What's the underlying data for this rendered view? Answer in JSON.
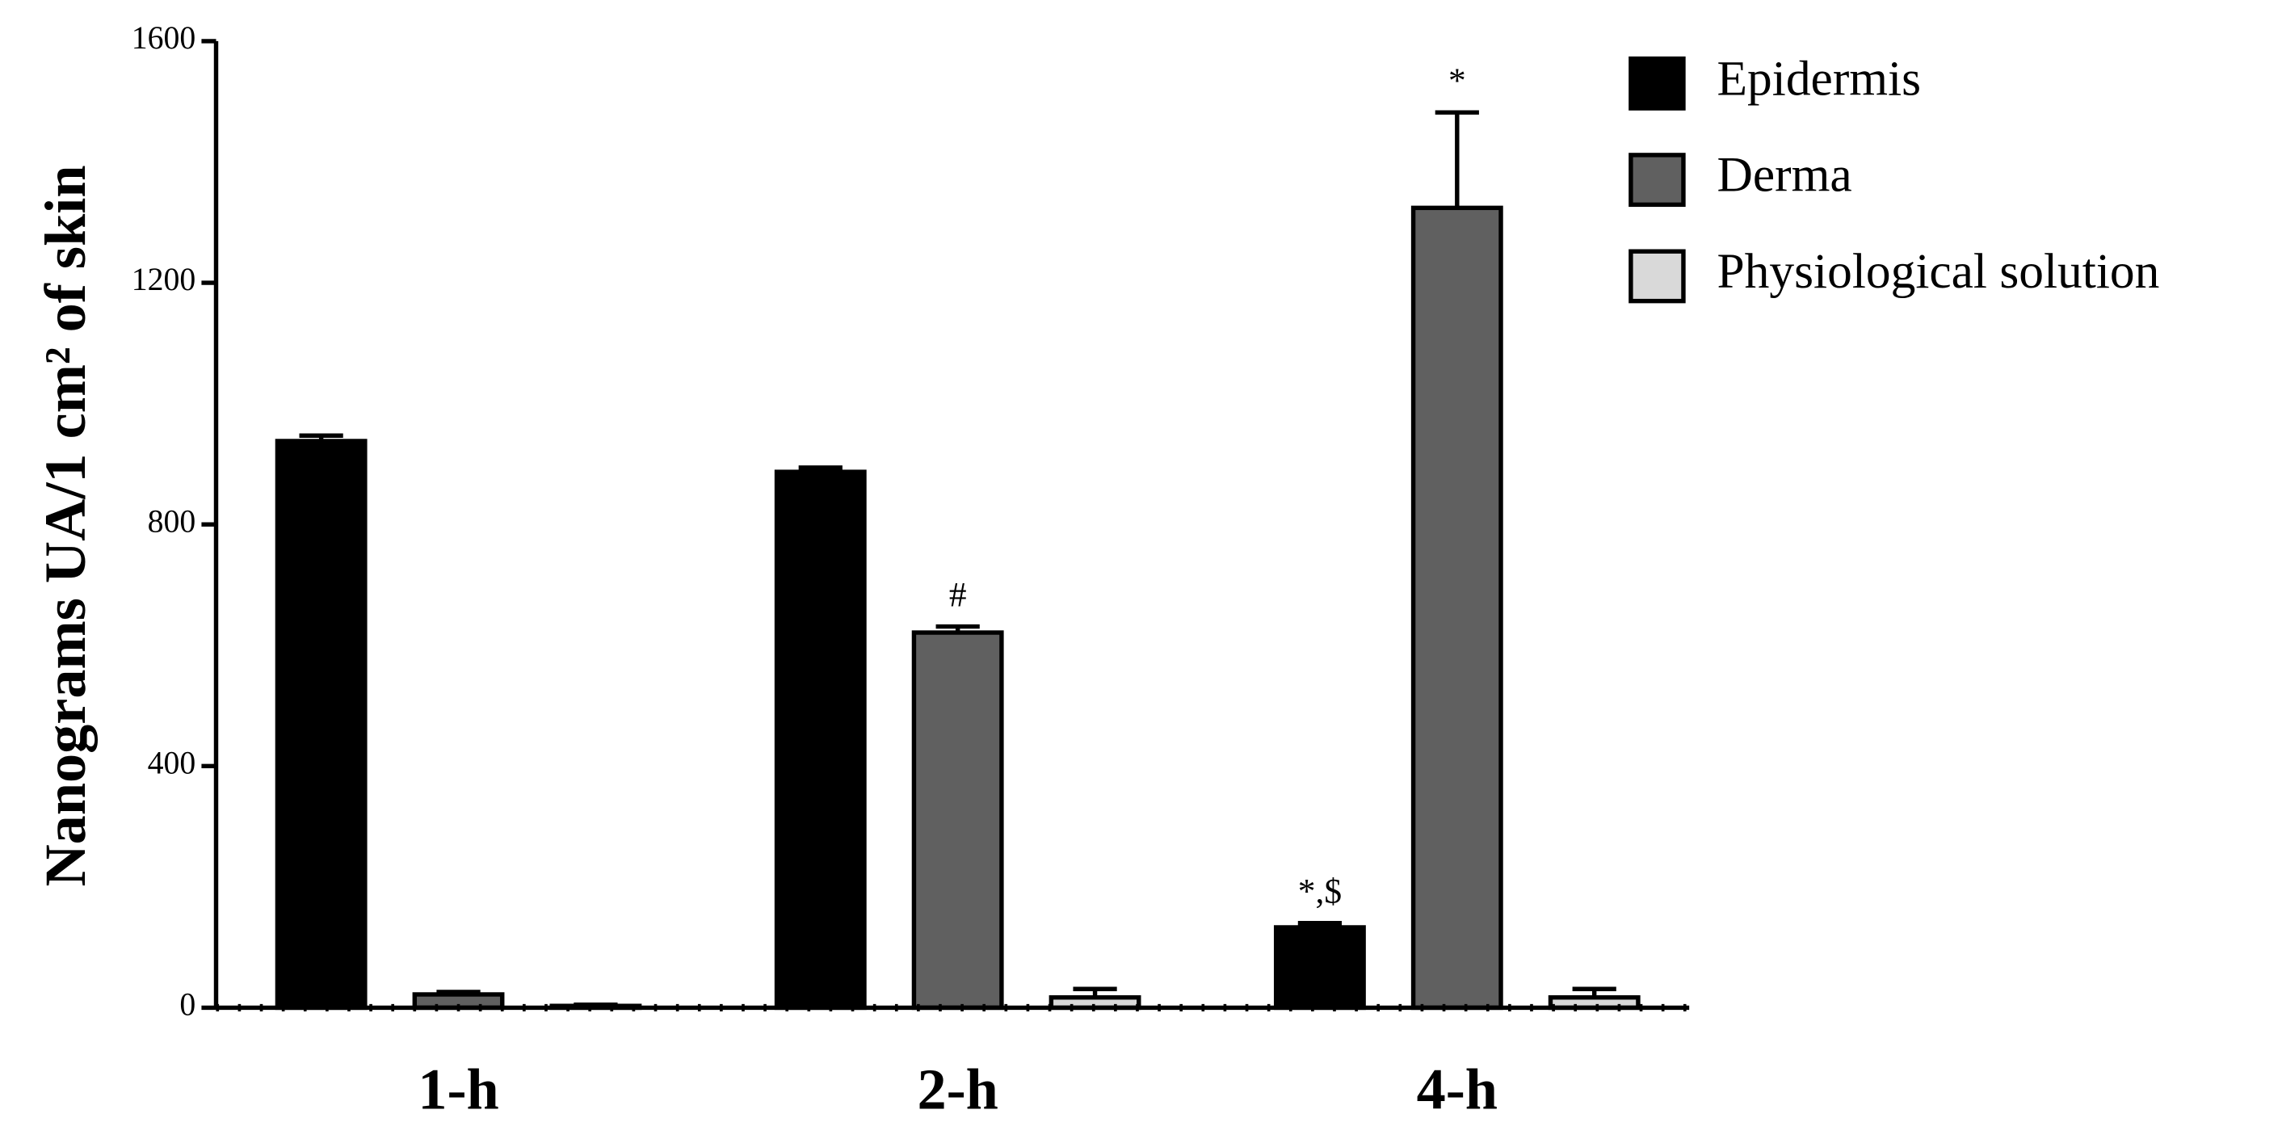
{
  "chart_data": {
    "type": "bar",
    "y_label": "Nanograms UA/1 cm² of skin",
    "categories": [
      "1-h",
      "2-h",
      "4-h"
    ],
    "series": [
      {
        "name": "Epidermis",
        "color": "#000000",
        "values": [
          938,
          887,
          133
        ],
        "errors": [
          9,
          7,
          7
        ],
        "annotations": [
          null,
          null,
          "*,$"
        ]
      },
      {
        "name": "Derma",
        "color": "#606060",
        "values": [
          22,
          621,
          1324
        ],
        "errors": [
          4,
          10,
          158
        ],
        "annotations": [
          null,
          "#",
          "*"
        ]
      },
      {
        "name": "Physiological solution",
        "color": "#d9d9d9",
        "values": [
          3,
          17,
          17
        ],
        "errors": [
          2,
          14,
          14
        ],
        "annotations": [
          null,
          null,
          null
        ]
      }
    ],
    "ylim": [
      0,
      1600
    ],
    "yticks": [
      0,
      400,
      800,
      1200,
      1600
    ],
    "legend": "top-right",
    "grid": false
  }
}
